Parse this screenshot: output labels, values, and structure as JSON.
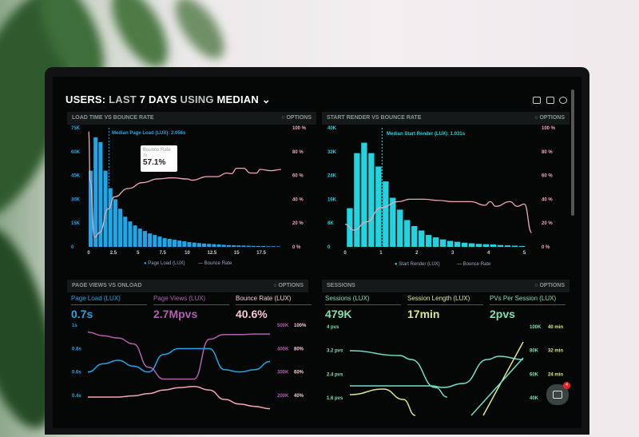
{
  "header": {
    "title_users": "USERS:",
    "title_last": "LAST",
    "title_days": "7 DAYS",
    "title_using": "USING",
    "title_median": "MEDIAN",
    "chevron": "chevron-down-icon",
    "icons": [
      "monitor-icon",
      "share-icon",
      "help-icon"
    ]
  },
  "options_label": "OPTIONS",
  "colors": {
    "blue": "#1ea7e8",
    "cyan": "#22d3e0",
    "pink": "#f2a7b4",
    "purple": "#b35fb0",
    "green": "#7fe0b0",
    "yellow": "#d9e88a"
  },
  "panels": {
    "p1": {
      "title": "LOAD TIME VS BOUNCE RATE",
      "median": "Median Page Load (LUX): 2.056s",
      "legend_a": "Page Load (LUX)",
      "legend_b": "Bounce Rate",
      "tooltip": {
        "label": "Bounce Rate",
        "sub": "7s",
        "value": "57.1%"
      }
    },
    "p2": {
      "title": "START RENDER VS BOUNCE RATE",
      "median": "Median Start Render (LUX): 1.031s",
      "legend_a": "Start Render (LUX)",
      "legend_b": "Bounce Rate"
    },
    "p3": {
      "title": "PAGE VIEWS VS ONLOAD",
      "kpis": [
        {
          "label": "Page Load (LUX)",
          "value": "0.7s"
        },
        {
          "label": "Page Views (LUX)",
          "value": "2.7Mpvs"
        },
        {
          "label": "Bounce Rate (LUX)",
          "value": "40.6%"
        }
      ]
    },
    "p4": {
      "title": "SESSIONS",
      "kpis": [
        {
          "label": "Sessions (LUX)",
          "value": "479K"
        },
        {
          "label": "Session Length (LUX)",
          "value": "17min"
        },
        {
          "label": "PVs Per Session (LUX)",
          "value": "2pvs"
        }
      ],
      "chat_badge": "4"
    }
  },
  "chart_data": [
    {
      "type": "bar",
      "title": "LOAD TIME VS BOUNCE RATE",
      "y_ticks": [
        "0",
        "15K",
        "30K",
        "45K",
        "60K",
        "75K"
      ],
      "y2_ticks": [
        "0 %",
        "20 %",
        "40 %",
        "60 %",
        "80 %",
        "100 %"
      ],
      "x_ticks": [
        "0",
        "2.5",
        "5",
        "7.5",
        "10",
        "12.5",
        "15",
        "17.5"
      ],
      "ylim": [
        0,
        75000
      ],
      "y2lim": [
        0,
        100
      ],
      "xlim": [
        0,
        20
      ],
      "bar_width": 0.5,
      "values": [
        48000,
        69000,
        66000,
        48000,
        37000,
        30000,
        24000,
        19000,
        16000,
        13500,
        11500,
        10000,
        8500,
        7500,
        6500,
        5500,
        5000,
        4500,
        4000,
        3500,
        3000,
        2700,
        2400,
        2100,
        1900,
        1700,
        1500,
        1300,
        1100,
        1000,
        900,
        800,
        700,
        600,
        500,
        500,
        400,
        400,
        300
      ],
      "median_x": 2.056,
      "line": {
        "name": "Bounce Rate",
        "points": [
          [
            0,
            97
          ],
          [
            0.15,
            55
          ],
          [
            0.6,
            8
          ],
          [
            1.1,
            12
          ],
          [
            2,
            32
          ],
          [
            2.6,
            42
          ],
          [
            4,
            49
          ],
          [
            5.5,
            54
          ],
          [
            7,
            57.1
          ],
          [
            8.5,
            58
          ],
          [
            10,
            57
          ],
          [
            10.5,
            56
          ],
          [
            12,
            59
          ],
          [
            13,
            59
          ],
          [
            14,
            62
          ],
          [
            14.5,
            61.5
          ],
          [
            15,
            66
          ],
          [
            15.7,
            66
          ],
          [
            16.4,
            62
          ],
          [
            17,
            62
          ],
          [
            17.4,
            65
          ],
          [
            18.5,
            64
          ],
          [
            19.5,
            65
          ]
        ]
      }
    },
    {
      "type": "bar",
      "title": "START RENDER VS BOUNCE RATE",
      "y_ticks": [
        "0",
        "8K",
        "16K",
        "24K",
        "32K",
        "40K"
      ],
      "y2_ticks": [
        "0 %",
        "20 %",
        "40 %",
        "60 %",
        "80 %",
        "100 %"
      ],
      "x_ticks": [
        "0",
        "1",
        "2",
        "3",
        "4",
        "5"
      ],
      "ylim": [
        0,
        40000
      ],
      "y2lim": [
        0,
        100
      ],
      "xlim": [
        0,
        5.3
      ],
      "bar_width": 0.2,
      "values": [
        13000,
        31500,
        35000,
        31500,
        27000,
        22000,
        16500,
        12500,
        9000,
        7000,
        5500,
        4000,
        3200,
        2500,
        2000,
        1700,
        1400,
        1200,
        1000,
        900,
        800,
        600,
        500,
        400,
        300
      ],
      "median_x": 1.031,
      "line": {
        "name": "Bounce Rate",
        "points": [
          [
            0,
            19
          ],
          [
            0.25,
            14
          ],
          [
            0.6,
            21
          ],
          [
            1,
            33
          ],
          [
            1.5,
            38
          ],
          [
            1.8,
            40
          ],
          [
            2.2,
            40
          ],
          [
            2.6,
            39
          ],
          [
            3,
            38
          ],
          [
            3.5,
            38
          ],
          [
            3.9,
            35
          ],
          [
            4.05,
            38
          ],
          [
            4.2,
            34
          ],
          [
            4.6,
            38
          ],
          [
            4.8,
            34
          ],
          [
            5,
            36
          ],
          [
            5.2,
            12
          ]
        ]
      }
    },
    {
      "type": "line",
      "title": "PAGE VIEWS VS ONLOAD",
      "y_ticks": [
        "0.4s",
        "0.6s",
        "0.8s",
        "1s"
      ],
      "y2_ticks": [
        "200K",
        "300K",
        "400K",
        "500K"
      ],
      "y3_ticks": [
        "40%",
        "60%",
        "80%",
        "100%"
      ],
      "series": [
        {
          "name": "Page Load (LUX)",
          "values": [
            0.6,
            0.67,
            0.7,
            0.65,
            0.6,
            0.75,
            0.8,
            0.8,
            0.8,
            0.62,
            0.6,
            0.62,
            0.69
          ]
        },
        {
          "name": "Page Views (LUX)",
          "values": [
            470000,
            455000,
            445000,
            420000,
            320000,
            270000,
            270000,
            270000,
            440000,
            460000,
            460000,
            462000,
            462000
          ]
        },
        {
          "name": "Bounce Rate (LUX)",
          "values": [
            40,
            40,
            40,
            41,
            43,
            46,
            48,
            49,
            46,
            38,
            34,
            32,
            30
          ]
        }
      ]
    },
    {
      "type": "line",
      "title": "SESSIONS",
      "y_ticks": [
        "1.6 pvs",
        "2.4 pvs",
        "3.2 pvs",
        "4 pvs"
      ],
      "y2_ticks": [
        "40K",
        "60K",
        "80K",
        "100K"
      ],
      "y3_ticks": [
        "24 min",
        "32 min",
        "40 min"
      ]
    }
  ]
}
